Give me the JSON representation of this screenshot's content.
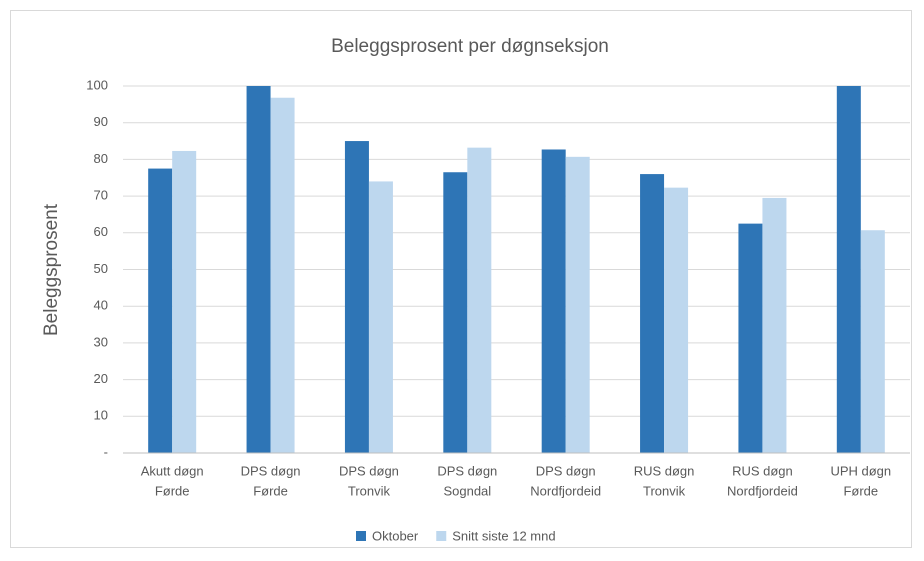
{
  "chart_data": {
    "type": "bar",
    "title": "Beleggsprosent per døgnseksjon",
    "y_label": "Beleggsprosent",
    "categories": [
      [
        "Akutt døgn",
        "Førde"
      ],
      [
        "DPS døgn",
        "Førde"
      ],
      [
        "DPS døgn",
        "Tronvik"
      ],
      [
        "DPS døgn",
        "Sogndal"
      ],
      [
        "DPS døgn",
        "Nordfjordeid"
      ],
      [
        "RUS døgn",
        "Tronvik"
      ],
      [
        "RUS døgn",
        "Nordfjordeid"
      ],
      [
        "UPH døgn",
        "Førde"
      ]
    ],
    "series": [
      {
        "name": "Oktober",
        "color": "#2e75b6",
        "values": [
          77.5,
          100,
          85,
          76.5,
          82.7,
          76,
          62.5,
          100
        ]
      },
      {
        "name": "Snitt siste 12 mnd",
        "color": "#bdd7ee",
        "values": [
          82.3,
          96.8,
          74,
          83.2,
          80.7,
          72.3,
          69.5,
          60.7
        ]
      }
    ],
    "ylim": [
      0,
      100
    ],
    "yticks": [
      {
        "value": 0,
        "label": "-"
      },
      10,
      20,
      30,
      40,
      50,
      60,
      70,
      80,
      90,
      100
    ],
    "grid": true,
    "legend": "bottom"
  }
}
